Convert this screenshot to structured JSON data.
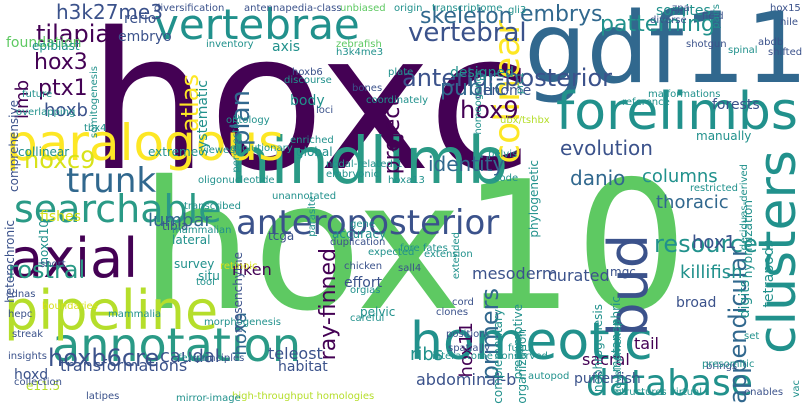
{
  "background": "#ffffff",
  "palette": {
    "deep_purple": "#440154",
    "indigo": "#3b528b",
    "blue": "#31688e",
    "teal": "#21918c",
    "green_teal": "#2a9a86",
    "green": "#5ec962",
    "light_green": "#7ad151",
    "yellow_green": "#b5de2b",
    "yellow": "#d8e219",
    "bright_yellow": "#fde725"
  },
  "words": [
    {
      "text": "hoxc"
    },
    {
      "text": "hox10"
    },
    {
      "text": "gdf11"
    },
    {
      "text": "hindlimb"
    },
    {
      "text": "paralogous"
    },
    {
      "text": "forelimbs"
    },
    {
      "text": "vertebrae"
    },
    {
      "text": "homeotic"
    },
    {
      "text": "annotation"
    },
    {
      "text": "axial"
    },
    {
      "text": "pipeline"
    },
    {
      "text": "clusters"
    },
    {
      "text": "anteroposterior"
    },
    {
      "text": "searchable"
    },
    {
      "text": "database"
    },
    {
      "text": "bud"
    },
    {
      "text": "trunk"
    },
    {
      "text": "colinear"
    },
    {
      "text": "ray-finned"
    },
    {
      "text": "hoxc9"
    },
    {
      "text": "hox3"
    },
    {
      "text": "vertebral"
    },
    {
      "text": "anterior-posterior"
    },
    {
      "text": "skeleton"
    },
    {
      "text": "plan"
    },
    {
      "text": "patterning"
    },
    {
      "text": "primers"
    },
    {
      "text": "embrys"
    },
    {
      "text": "hoxb6cre"
    },
    {
      "text": "resource"
    },
    {
      "text": "tilapia"
    },
    {
      "text": "atlas"
    },
    {
      "text": "rostral"
    },
    {
      "text": "hox9"
    },
    {
      "text": "evolution"
    },
    {
      "text": "appendicular"
    },
    {
      "text": "public"
    },
    {
      "text": "project"
    },
    {
      "text": "ptx1"
    },
    {
      "text": "h3k27me3"
    },
    {
      "text": "danio"
    },
    {
      "text": "identity"
    },
    {
      "text": "transformations"
    },
    {
      "text": "hoxa"
    },
    {
      "text": "thoracic"
    },
    {
      "text": "lumbar"
    },
    {
      "text": "columns"
    },
    {
      "text": "ribs"
    },
    {
      "text": "killifish"
    },
    {
      "text": "hox1"
    },
    {
      "text": "hox11"
    },
    {
      "text": "mesoderm"
    },
    {
      "text": "caudal"
    },
    {
      "text": "tail"
    },
    {
      "text": "sacral"
    },
    {
      "text": "abdominal-b"
    },
    {
      "text": "teleost"
    },
    {
      "text": "curated"
    },
    {
      "text": "pufferfish"
    },
    {
      "text": "genome"
    },
    {
      "text": "somites"
    },
    {
      "text": "limb"
    },
    {
      "text": "hoxb"
    },
    {
      "text": "axis"
    },
    {
      "text": "body"
    },
    {
      "text": "riken"
    },
    {
      "text": "fishes"
    },
    {
      "text": "foundation"
    },
    {
      "text": "embryo"
    },
    {
      "text": "rerio"
    },
    {
      "text": "epiblast"
    },
    {
      "text": "designed"
    },
    {
      "text": "hoxd"
    },
    {
      "text": "digits"
    },
    {
      "text": "tetrapods"
    },
    {
      "text": "forests"
    },
    {
      "text": "broad"
    },
    {
      "text": "effort"
    },
    {
      "text": "habitat"
    },
    {
      "text": "systematic"
    },
    {
      "text": "accuracy"
    },
    {
      "text": "collinear"
    },
    {
      "text": "extreme"
    },
    {
      "text": "global"
    },
    {
      "text": "evolutionary"
    },
    {
      "text": "complementary"
    },
    {
      "text": "organization"
    },
    {
      "text": "lateral"
    },
    {
      "text": "survey"
    },
    {
      "text": "situ"
    },
    {
      "text": "pelvic"
    },
    {
      "text": "hybridization"
    },
    {
      "text": "manually"
    },
    {
      "text": "mgc"
    },
    {
      "text": "comprehensive"
    },
    {
      "text": "e11.5"
    },
    {
      "text": "tcga"
    },
    {
      "text": "tibia"
    },
    {
      "text": "heterochronic"
    },
    {
      "text": "mesenchyme"
    },
    {
      "text": "nephrogenesis"
    },
    {
      "text": "metanephric"
    },
    {
      "text": "presumptive"
    },
    {
      "text": "shotgun"
    },
    {
      "text": "abdb"
    },
    {
      "text": "diverse"
    },
    {
      "text": "field"
    },
    {
      "text": "phylogenetic"
    },
    {
      "text": "developmental"
    },
    {
      "text": "homeogenes"
    },
    {
      "text": "hoxd10"
    },
    {
      "text": "tbx4"
    },
    {
      "text": "code"
    },
    {
      "text": "zebrafish"
    },
    {
      "text": "h3k4me3"
    },
    {
      "text": "inventory"
    },
    {
      "text": "unbiased"
    },
    {
      "text": "origin"
    },
    {
      "text": "transcriptome"
    },
    {
      "text": "antennapedia-class"
    },
    {
      "text": "diversification"
    },
    {
      "text": "hoxb6"
    },
    {
      "text": "loci"
    },
    {
      "text": "discourse"
    },
    {
      "text": "overlapping"
    },
    {
      "text": "ontology"
    },
    {
      "text": "viewed"
    },
    {
      "text": "chicken"
    },
    {
      "text": "sall4"
    },
    {
      "text": "duplication"
    },
    {
      "text": "parasite"
    },
    {
      "text": "enriched"
    },
    {
      "text": "oligonucleotide"
    },
    {
      "text": "transcribed"
    },
    {
      "text": "mammalian"
    },
    {
      "text": "clones"
    },
    {
      "text": "extended"
    },
    {
      "text": "fore fates"
    },
    {
      "text": "cord"
    },
    {
      "text": "spatially"
    },
    {
      "text": "interactome"
    },
    {
      "text": "position"
    },
    {
      "text": "fugu"
    },
    {
      "text": "conserved"
    },
    {
      "text": "structures"
    },
    {
      "text": "virtual"
    },
    {
      "text": "brings"
    },
    {
      "text": "enables"
    },
    {
      "text": "high-throughput homologies"
    },
    {
      "text": "mirror-image"
    },
    {
      "text": "latipes"
    },
    {
      "text": "collection"
    },
    {
      "text": "insights"
    },
    {
      "text": "streak"
    },
    {
      "text": "cdnas"
    },
    {
      "text": "principles"
    },
    {
      "text": "femur"
    },
    {
      "text": "morphogenesis"
    },
    {
      "text": "careful"
    },
    {
      "text": "orgias"
    },
    {
      "text": "presomitic"
    },
    {
      "text": "set"
    },
    {
      "text": "restricted"
    },
    {
      "text": "deciduas-derived"
    },
    {
      "text": "malformations"
    },
    {
      "text": "reference"
    },
    {
      "text": "plate"
    },
    {
      "text": "spinal"
    },
    {
      "text": "shifted"
    },
    {
      "text": "nile"
    },
    {
      "text": "hox15"
    },
    {
      "text": "zpa"
    },
    {
      "text": "pairs"
    },
    {
      "text": "bones"
    },
    {
      "text": "coordinately"
    },
    {
      "text": "future"
    },
    {
      "text": "somitogenesis"
    },
    {
      "text": "perspective"
    },
    {
      "text": "retinoic"
    },
    {
      "text": "expected"
    },
    {
      "text": "nodal-related-1"
    },
    {
      "text": "pelvis"
    },
    {
      "text": "tool"
    },
    {
      "text": "short"
    },
    {
      "text": "extension"
    },
    {
      "text": "autopod"
    },
    {
      "text": "prc1"
    },
    {
      "text": "gli3"
    },
    {
      "text": "embryonic"
    },
    {
      "text": "ubx/tshbx"
    },
    {
      "text": "hoxa13"
    },
    {
      "text": "unannotated"
    },
    {
      "text": "gene"
    },
    {
      "text": "vac"
    },
    {
      "text": "hepc"
    },
    {
      "text": "mammalia"
    },
    {
      "text": "boundaries"
    }
  ]
}
